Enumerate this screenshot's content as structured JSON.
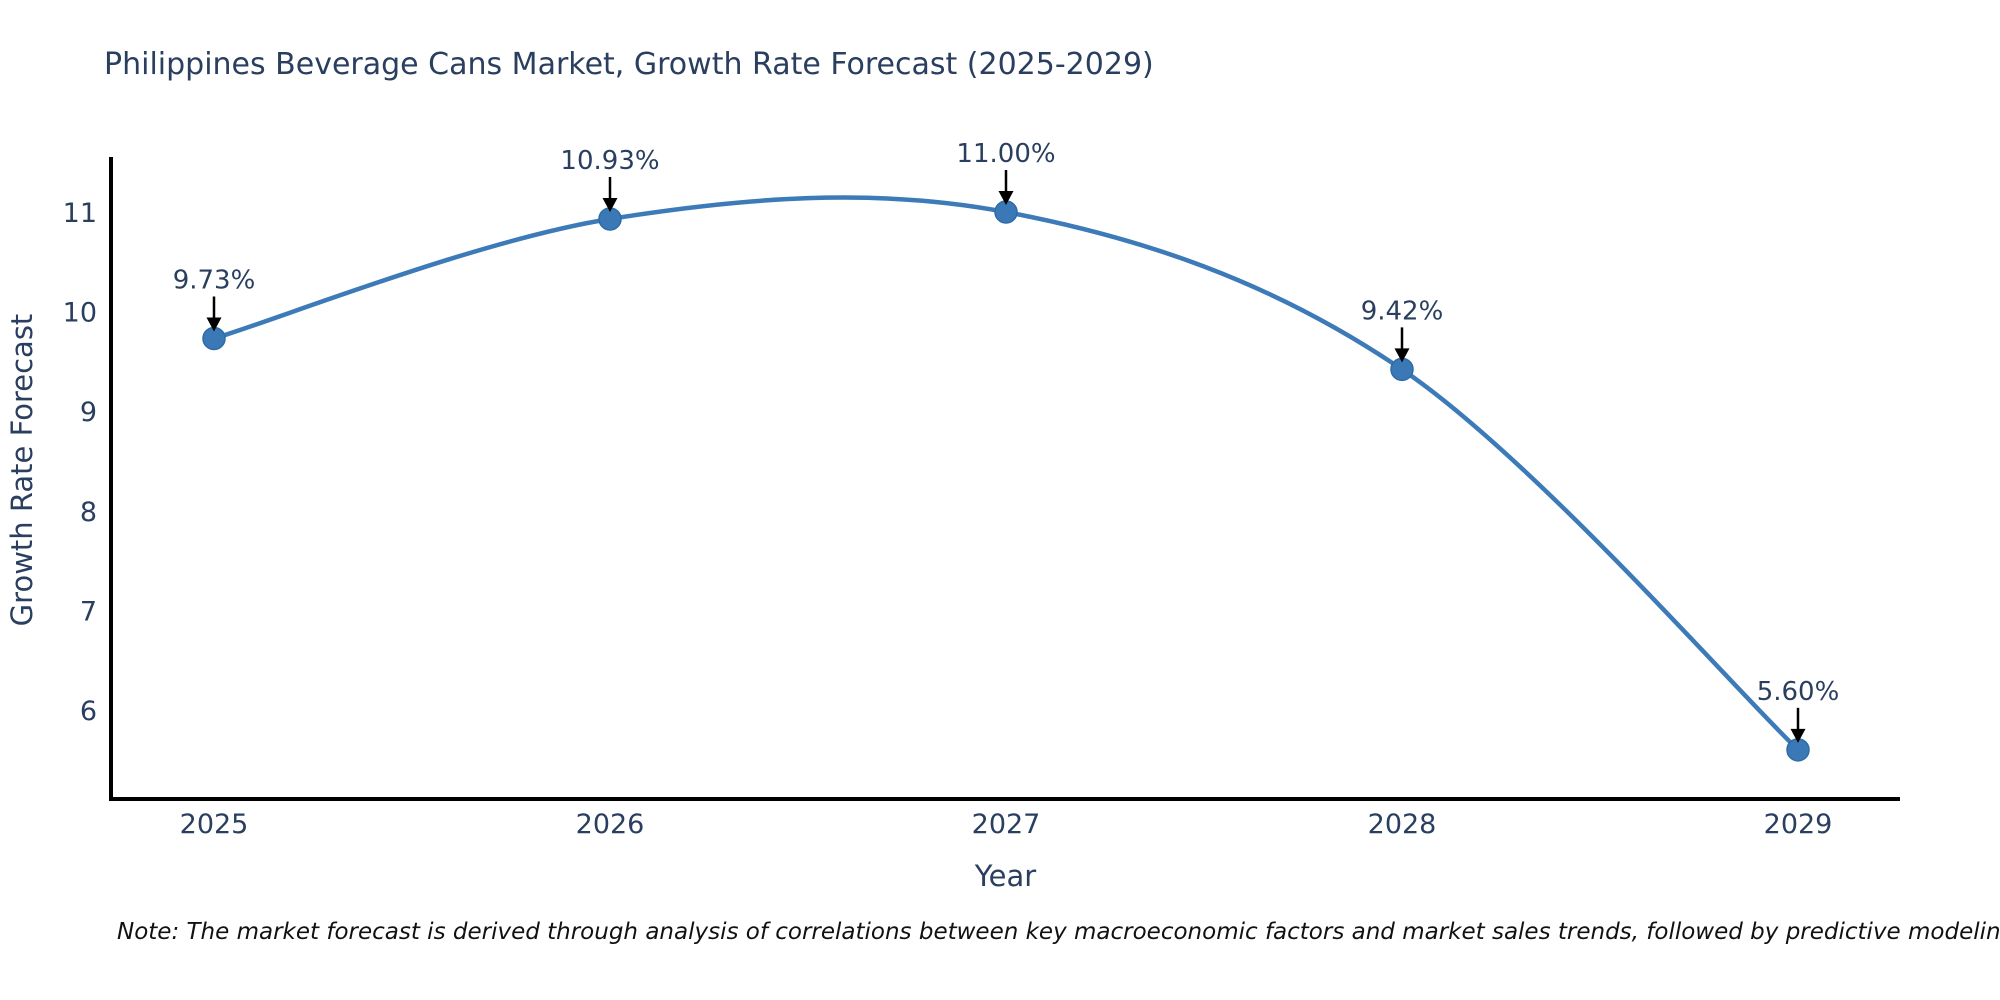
{
  "figure": {
    "title": "Philippines Beverage Cans Market, Growth Rate Forecast (2025-2029)",
    "note": "Note: The market forecast is derived through analysis of correlations between key macroeconomic factors and market sales trends, followed by predictive modeling to project future sales"
  },
  "chart_data": {
    "type": "line",
    "title": "Philippines Beverage Cans Market, Growth Rate Forecast (2025-2029)",
    "categories": [
      "2025",
      "2026",
      "2027",
      "2028",
      "2029"
    ],
    "series": [
      {
        "name": "Growth Rate Forecast",
        "values": [
          9.73,
          10.93,
          11.0,
          9.42,
          5.6
        ],
        "point_labels": [
          "9.73%",
          "10.93%",
          "11.00%",
          "9.42%",
          "5.60%"
        ]
      }
    ],
    "xlabel": "Year",
    "ylabel": "Growth Rate Forecast",
    "yticks": [
      6,
      7,
      8,
      9,
      10,
      11
    ],
    "ylim": [
      5.1,
      11.6
    ],
    "grid": false,
    "legend_position": "none",
    "line_shape": "spline",
    "annotations": "value labels with down arrows above each point",
    "colors": {
      "line": "#3d7ab8",
      "marker": "#3a78b6",
      "marker_edge": "#2e6ca8",
      "text": "#2a3f5f",
      "axis": "#000000",
      "arrow": "#000000",
      "note": "#111111",
      "background": "#ffffff"
    }
  }
}
